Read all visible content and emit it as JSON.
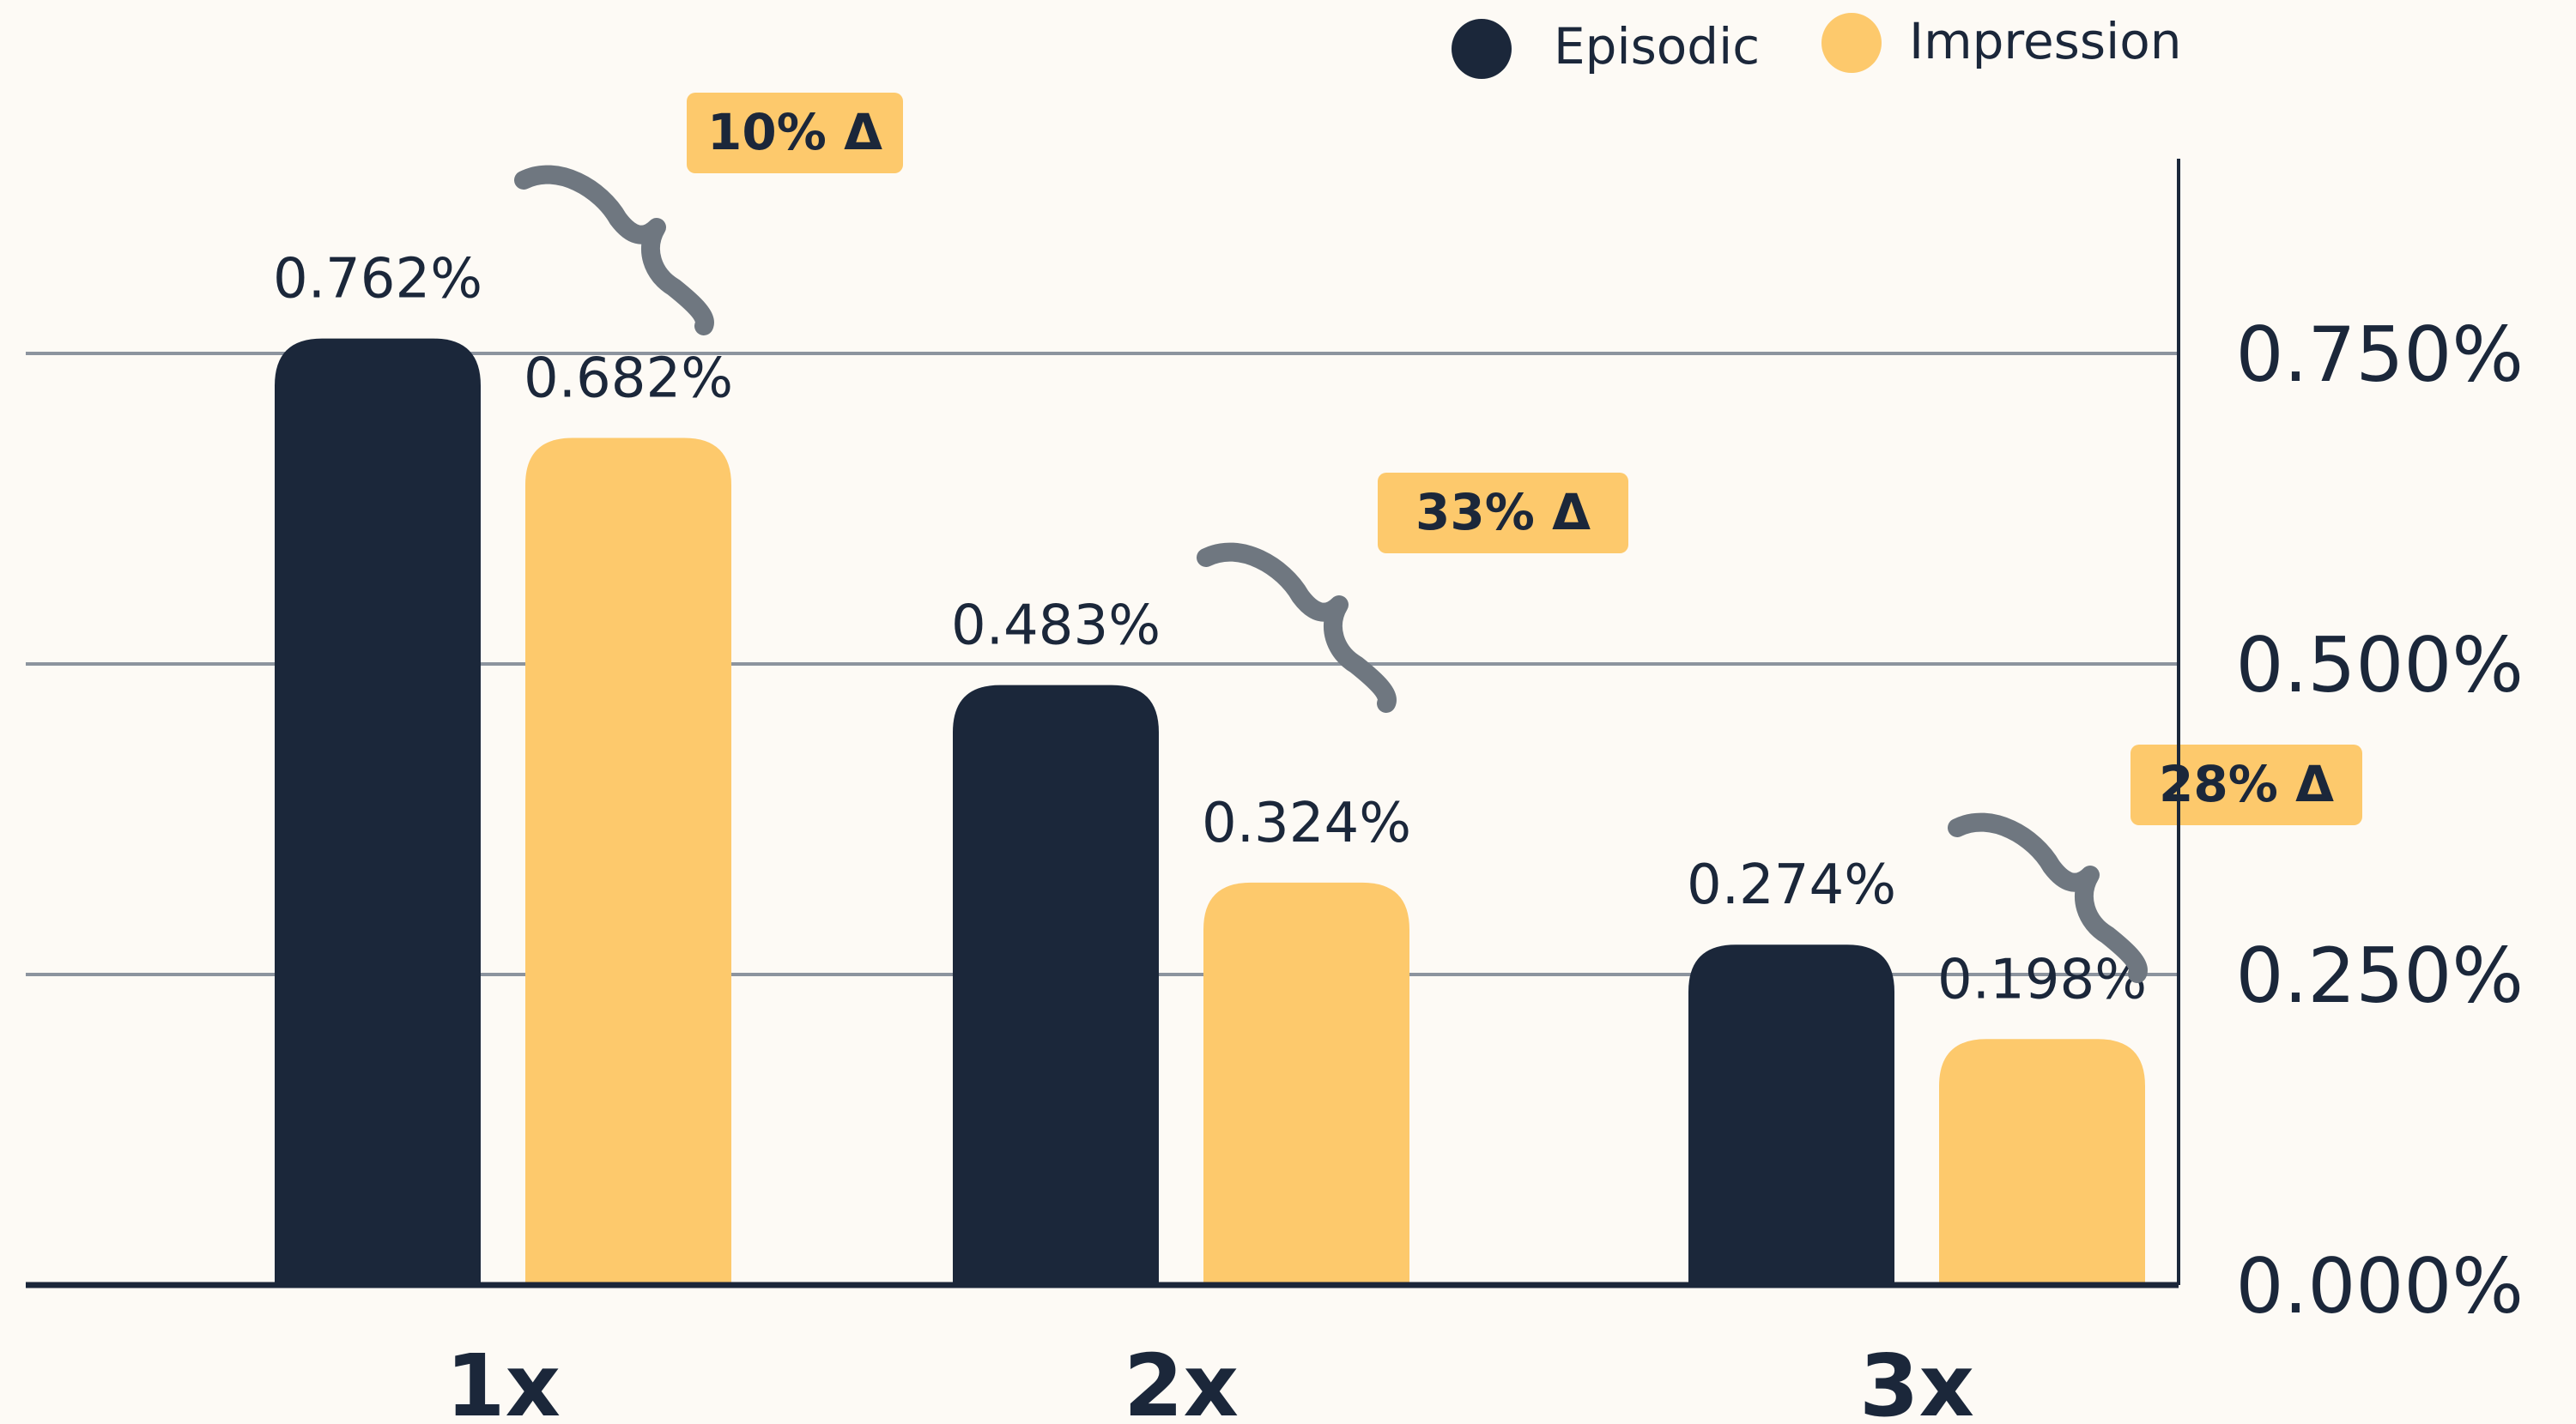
{
  "legend": {
    "placement": "top-right",
    "items": [
      {
        "label": "Episodic",
        "color": "#1b273a"
      },
      {
        "label": "Impression",
        "color": "#fdc96c"
      }
    ]
  },
  "chart_data": {
    "type": "bar",
    "title": "",
    "xlabel": "",
    "ylabel": "",
    "categories": [
      "1x",
      "2x",
      "3x"
    ],
    "ylim": [
      0,
      0.9
    ],
    "yticks": [
      0,
      0.25,
      0.5,
      0.75
    ],
    "ytick_labels": [
      "0.000%",
      "0.250%",
      "0.500%",
      "0.750%"
    ],
    "y_axis_side": "right",
    "grid": true,
    "series": [
      {
        "name": "Episodic",
        "color": "#1b273a",
        "values": [
          0.762,
          0.483,
          0.274
        ],
        "labels": [
          "0.762%",
          "0.483%",
          "0.274%"
        ]
      },
      {
        "name": "Impression",
        "color": "#fdc96c",
        "values": [
          0.682,
          0.324,
          0.198
        ],
        "labels": [
          "0.682%",
          "0.324%",
          "0.198%"
        ]
      }
    ],
    "annotations": [
      {
        "category": "1x",
        "text": "10% Δ"
      },
      {
        "category": "2x",
        "text": "33% Δ"
      },
      {
        "category": "3x",
        "text": "28% Δ"
      }
    ]
  },
  "colors": {
    "background": "#fdfaf5",
    "grid": "#8c949e",
    "axis": "#1b273a",
    "text": "#1b273a",
    "brace": "#6f7780",
    "badge": "#fdc96c"
  }
}
